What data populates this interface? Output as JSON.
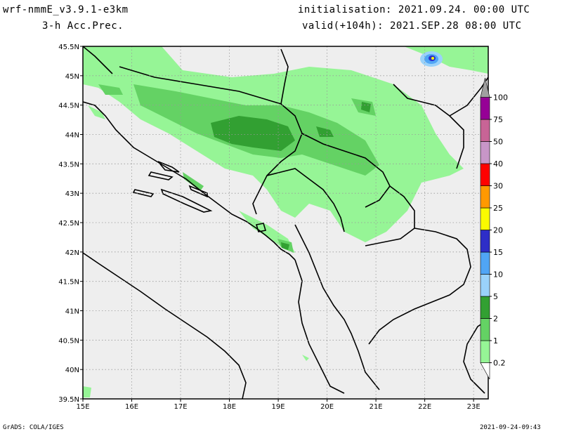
{
  "header": {
    "model": "wrf-nmmE_v3.9.1-e3km",
    "field": "3-h Acc.Prec.",
    "init": "initialisation: 2021.09.24. 00:00 UTC",
    "valid": "valid(+104h): 2021.SEP.28 08:00 UTC"
  },
  "footer": {
    "left": "GrADS: COLA/IGES",
    "right": "2021-09-24-09:43"
  },
  "map": {
    "lon_range": [
      15,
      23.3
    ],
    "lat_range": [
      39.5,
      45.5
    ],
    "x_ticks": [
      "15E",
      "16E",
      "17E",
      "18E",
      "19E",
      "20E",
      "21E",
      "22E",
      "23E"
    ],
    "y_ticks": [
      "45.5N",
      "45N",
      "44.5N",
      "44N",
      "43.5N",
      "43N",
      "42.5N",
      "42N",
      "41.5N",
      "41N",
      "40.5N",
      "40N",
      "39.5N"
    ],
    "background_color": "#eeeeee",
    "grid": true
  },
  "colorbar": {
    "levels": [
      "0.2",
      "1",
      "2",
      "5",
      "10",
      "15",
      "20",
      "25",
      "30",
      "40",
      "50",
      "75",
      "100"
    ],
    "colors": [
      "#96f596",
      "#64d264",
      "#32a032",
      "#9ad2fa",
      "#50a5f5",
      "#2e2ec8",
      "#fafa00",
      "#ff9900",
      "#ff0000",
      "#c896c8",
      "#c86496",
      "#960096",
      "#a0a0a0"
    ]
  }
}
